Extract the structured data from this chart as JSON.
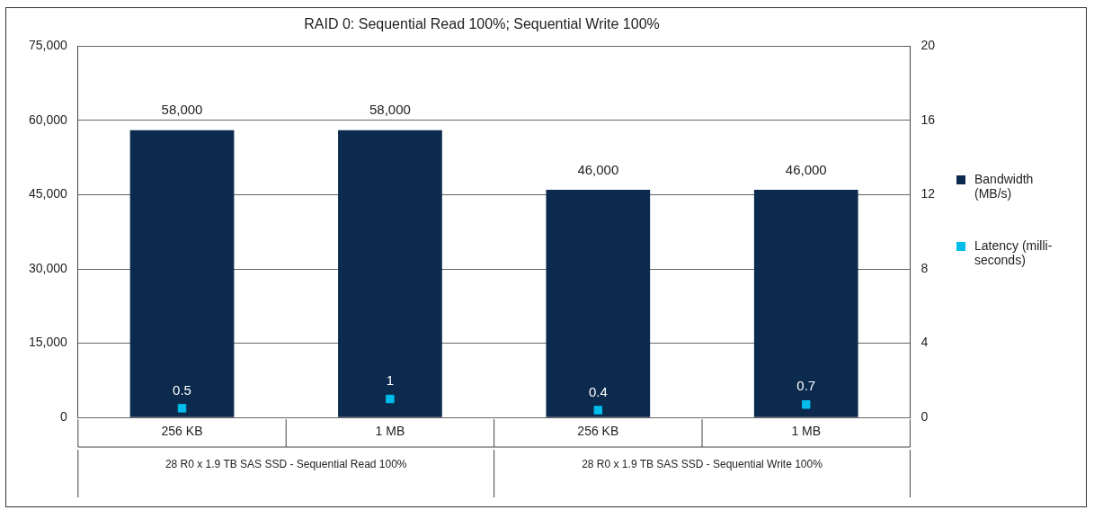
{
  "chart_data": {
    "type": "bar",
    "title": "RAID 0: Sequential Read 100%; Sequential Write 100%",
    "categories": [
      "256 KB",
      "1 MB",
      "256 KB",
      "1 MB"
    ],
    "series": [
      {
        "name": "Bandwidth (MB/s)",
        "color": "#0b2a4d",
        "values": [
          58000,
          58000,
          46000,
          46000
        ],
        "value_labels": [
          "58,000",
          "58,000",
          "46,000",
          "46,000"
        ]
      },
      {
        "name": "Latency (milli-seconds)",
        "type": "scatter",
        "color": "#00bceb",
        "axis": "y2",
        "values": [
          0.5,
          1,
          0.4,
          0.7
        ]
      }
    ],
    "ylim": [
      0,
      75000
    ],
    "yticks": [
      0,
      {
        "value": 15000,
        "label": "15,000"
      },
      {
        "value": 30000,
        "label": "30,000"
      },
      {
        "value": 45000,
        "label": "45,000"
      },
      {
        "value": 60000,
        "label": "60,000"
      },
      {
        "value": 75000,
        "label": "75,000"
      }
    ],
    "y2lim": [
      0,
      20
    ],
    "y2ticks": [
      0,
      4,
      8,
      12,
      16,
      20
    ],
    "grid": "y",
    "legend": "right",
    "marker": "square",
    "data_labels": true,
    "annotations": [
      "28 R0 x 1.9 TB SAS SSD - Sequential Read 100%",
      "28 R0 x 1.9 TB SAS SSD - Sequential Write 100%"
    ]
  }
}
